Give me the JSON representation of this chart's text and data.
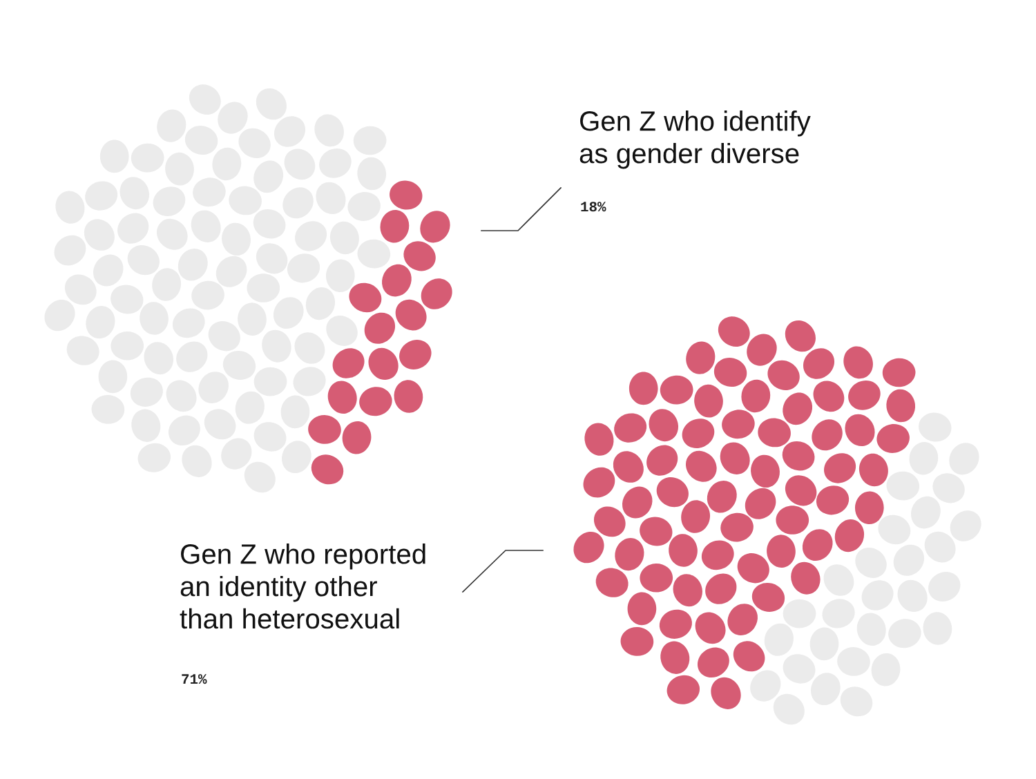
{
  "chart_data": [
    {
      "type": "other",
      "categories": [
        "Gen Z who identify\nas gender diverse"
      ],
      "values": [
        18
      ],
      "colors": [
        "#d65c74"
      ],
      "value_labels": [
        "18%"
      ]
    },
    {
      "type": "other",
      "categories": [
        "Gen Z who reported\nan identity other\nthan heterosexual"
      ],
      "values": [
        71
      ],
      "colors": [
        "#d65c74"
      ],
      "value_labels": [
        "71%"
      ]
    }
  ]
}
